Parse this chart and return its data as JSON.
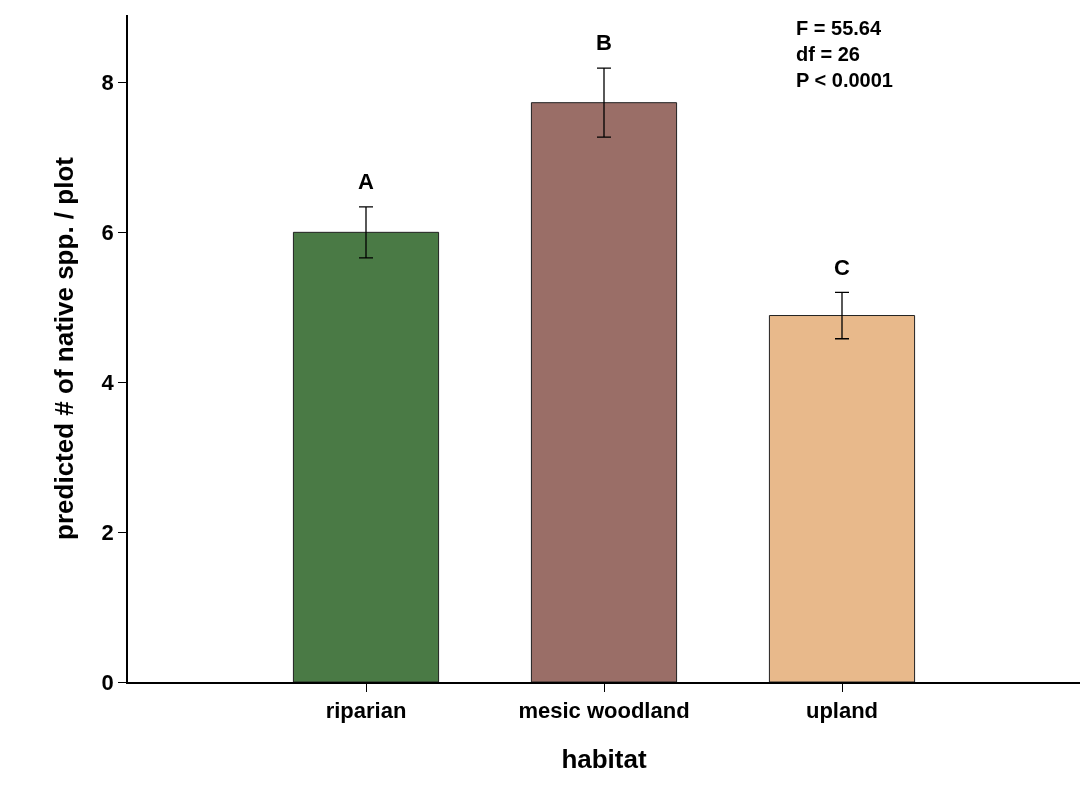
{
  "chart_data": {
    "type": "bar",
    "xlabel": "habitat",
    "ylabel": "predicted # of native spp. / plot",
    "categories": [
      "riparian",
      "mesic woodland",
      "upland"
    ],
    "values": [
      6.0,
      7.73,
      4.89
    ],
    "colors": [
      "#4a7a45",
      "#9a6e67",
      "#e8b98b"
    ],
    "errors": [
      0.34,
      0.46,
      0.31
    ],
    "ylim": [
      0,
      8.9
    ],
    "yticks": [
      0,
      2,
      4,
      6,
      8
    ],
    "grid": false,
    "annotations": [
      {
        "text": "A",
        "x": "riparian",
        "y": 6.35
      },
      {
        "text": "B",
        "x": "mesic woodland",
        "y": 8.2
      },
      {
        "text": "C",
        "x": "upland",
        "y": 5.21
      },
      "F = 55.64\ndf = 26\nP < 0.0001"
    ]
  }
}
